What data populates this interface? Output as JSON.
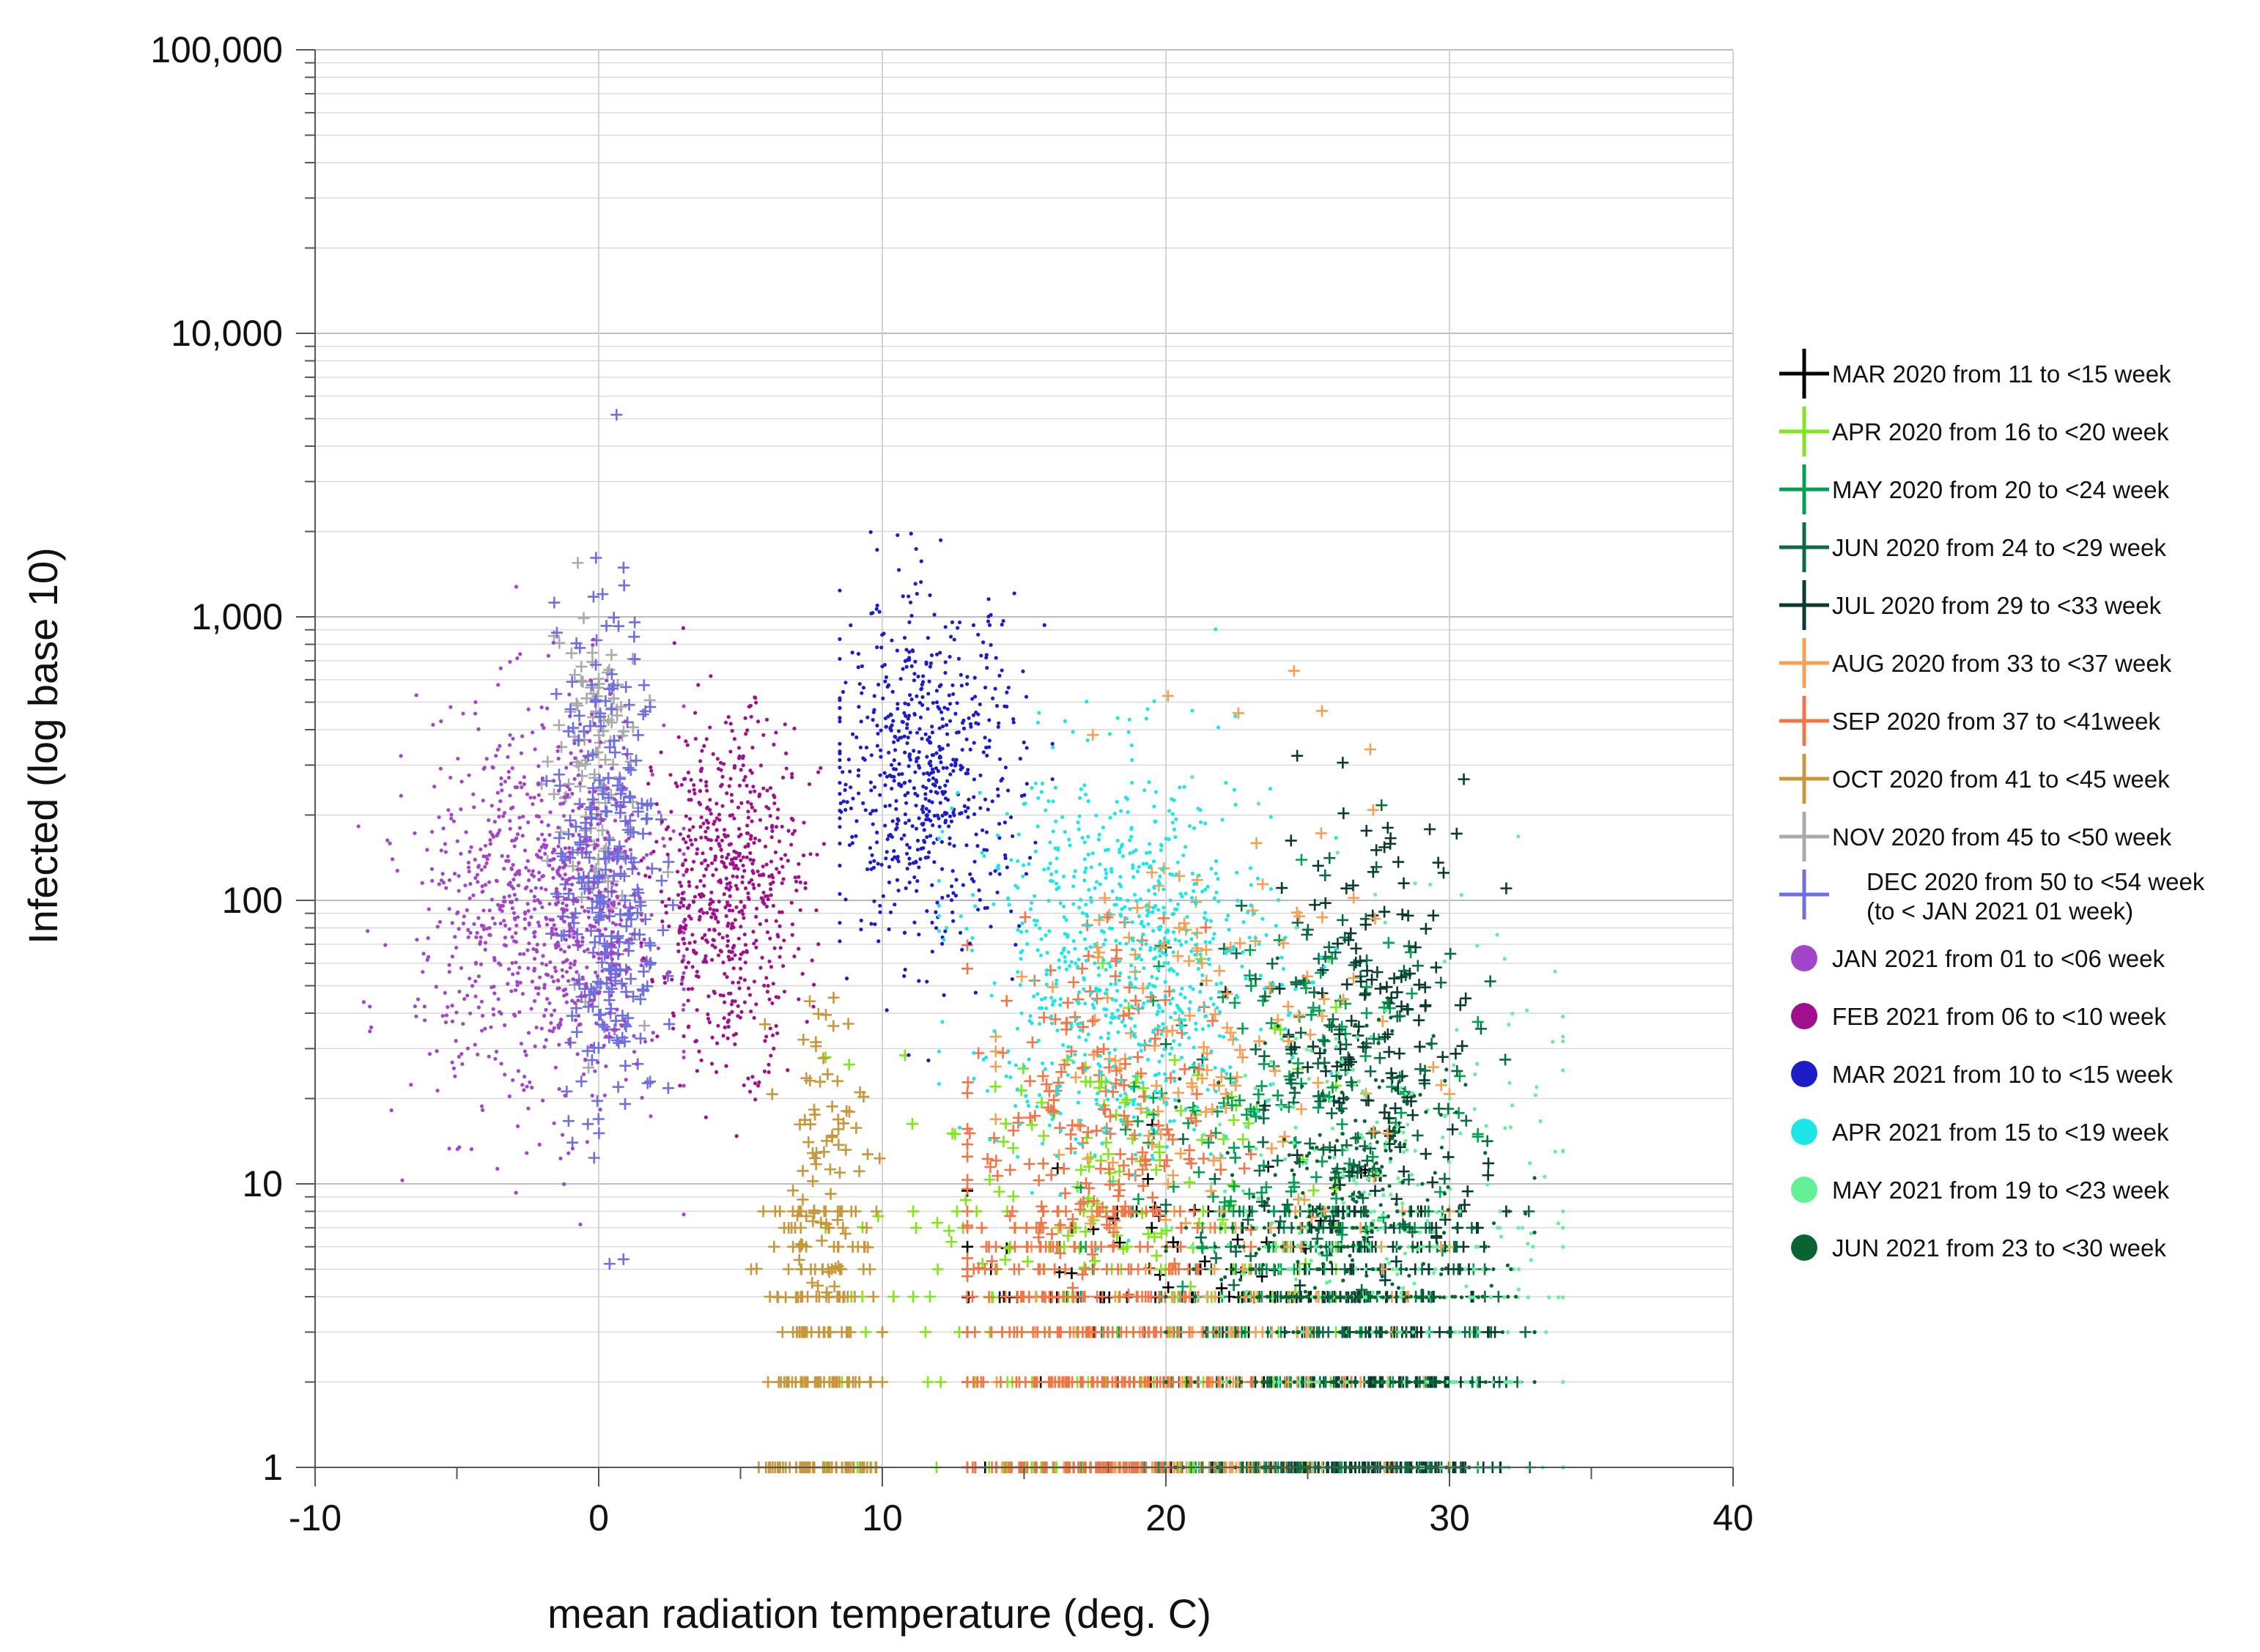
{
  "chart_data": {
    "type": "scatter",
    "title": "",
    "xlabel": "mean radiation temperature (deg. C)",
    "ylabel": "Infected (log base 10)",
    "xlim": [
      -10,
      40
    ],
    "ylim": [
      1,
      100000
    ],
    "yscale": "log",
    "grid": true,
    "legend_position": "right",
    "x_ticks": [
      -10,
      0,
      10,
      20,
      30,
      40
    ],
    "x_tick_labels": [
      "-10",
      "0",
      "10",
      "20",
      "30",
      "40"
    ],
    "y_ticks": [
      1,
      10,
      100,
      1000,
      10000,
      100000
    ],
    "y_tick_labels": [
      "1",
      "10",
      "100",
      "1,000",
      "10,000",
      "100,000"
    ],
    "series": [
      {
        "name": "MAR 2020 from 11 to <15 week",
        "label": [
          "MAR 2020 from 11 to <15 week"
        ],
        "marker": "plus",
        "color": "#000000",
        "x_range": [
          13,
          29
        ],
        "x_center": 21,
        "x_spread": 4,
        "y_log_center": 0.6,
        "y_log_spread": 0.3,
        "n_points": 60,
        "n_int_points": 80
      },
      {
        "name": "APR 2020 from 16 to <20 week",
        "label": [
          "APR 2020 from 16 to <20 week"
        ],
        "marker": "plus",
        "color": "#7fe619",
        "x_range": [
          8,
          26
        ],
        "x_center": 18,
        "x_spread": 4,
        "y_log_center": 1.1,
        "y_log_spread": 0.3,
        "n_points": 120,
        "n_int_points": 150
      },
      {
        "name": "MAY 2020 from 20 to <24 week",
        "label": [
          "MAY 2020 from 20 to <24 week"
        ],
        "marker": "plus",
        "color": "#00a050",
        "x_range": [
          17,
          31
        ],
        "x_center": 24,
        "x_spread": 3,
        "y_log_center": 1.3,
        "y_log_spread": 0.35,
        "n_points": 140,
        "n_int_points": 170
      },
      {
        "name": "JUN 2020 from 24 to <29 week",
        "label": [
          "JUN 2020 from 24 to <29 week"
        ],
        "marker": "plus",
        "color": "#0b6b45",
        "x_range": [
          20,
          33
        ],
        "x_center": 26,
        "x_spread": 2.5,
        "y_log_center": 1.4,
        "y_log_spread": 0.4,
        "n_points": 140,
        "n_int_points": 200
      },
      {
        "name": "JUL 2020 from 29 to <33 week",
        "label": [
          "JUL 2020 from 29 to <33 week"
        ],
        "marker": "plus",
        "color": "#0a3a30",
        "x_range": [
          22,
          32
        ],
        "x_center": 27.5,
        "x_spread": 1.8,
        "y_log_center": 1.5,
        "y_log_spread": 0.45,
        "n_points": 150,
        "n_int_points": 200
      },
      {
        "name": "AUG 2020 from 33 to <37 week",
        "label": [
          "AUG 2020 from 33 to <37 week"
        ],
        "marker": "plus",
        "color": "#f5a054",
        "x_range": [
          14,
          30
        ],
        "x_center": 21.5,
        "x_spread": 3.5,
        "y_log_center": 1.5,
        "y_log_spread": 0.45,
        "n_points": 150,
        "n_int_points": 160
      },
      {
        "name": "SEP 2020 from 37 to <41week",
        "label": [
          "SEP 2020 from 37 to <41week"
        ],
        "marker": "plus",
        "color": "#f0764a",
        "x_range": [
          13,
          23
        ],
        "x_center": 17,
        "x_spread": 2.2,
        "y_log_center": 1.2,
        "y_log_spread": 0.35,
        "n_points": 200,
        "n_int_points": 320
      },
      {
        "name": "OCT 2020 from 41 to <45 week",
        "label": [
          "OCT 2020 from 41 to <45 week"
        ],
        "marker": "plus",
        "color": "#c8963c",
        "x_range": [
          5,
          10
        ],
        "x_center": 7.8,
        "x_spread": 0.8,
        "y_log_center": 1.1,
        "y_log_spread": 0.3,
        "n_points": 80,
        "n_int_points": 200
      },
      {
        "name": "NOV 2020 from 45 to <50 week",
        "label": [
          "NOV 2020 from 45 to <50 week"
        ],
        "marker": "plus",
        "color": "#aaaaaa",
        "x_range": [
          -3,
          3
        ],
        "x_center": -0.2,
        "x_spread": 0.8,
        "y_log_center": 2.45,
        "y_log_spread": 0.35,
        "n_points": 120
      },
      {
        "name": "DEC 2020 from 50 to <54 week (to < JAN 2021 01 week)",
        "label": [
          "DEC 2020 from 50 to <54 week",
          "(to < JAN 2021 01 week)"
        ],
        "marker": "plus",
        "color": "#6f6fe0",
        "x_range": [
          -3,
          3.5
        ],
        "x_center": 0.3,
        "x_spread": 0.9,
        "y_log_center": 2.1,
        "y_log_spread": 0.45,
        "n_points": 300
      },
      {
        "name": "JAN 2021 from 01 to <06 week",
        "label": [
          "JAN 2021 from 01 to <06 week"
        ],
        "marker": "dot",
        "color": "#a245c8",
        "x_range": [
          -8.5,
          3
        ],
        "x_center": -2,
        "x_spread": 2.2,
        "y_log_center": 1.95,
        "y_log_spread": 0.35,
        "n_points": 900
      },
      {
        "name": "FEB 2021 from 06 to <10 week",
        "label": [
          "FEB 2021 from 06 to <10 week"
        ],
        "marker": "dot",
        "color": "#a0108c",
        "x_range": [
          1.5,
          10
        ],
        "x_center": 4.6,
        "x_spread": 1.3,
        "y_log_center": 2.05,
        "y_log_spread": 0.3,
        "n_points": 650
      },
      {
        "name": "MAR 2021 from 10 to <15 week",
        "label": [
          "MAR 2021 from 10 to <15 week"
        ],
        "marker": "dot",
        "color": "#1c1cc8",
        "x_range": [
          8.5,
          16
        ],
        "x_center": 11.5,
        "x_spread": 1.7,
        "y_log_center": 2.45,
        "y_log_spread": 0.3,
        "n_points": 650
      },
      {
        "name": "APR 2021 from 15 to <19 week",
        "label": [
          "APR 2021 from 15 to <19 week"
        ],
        "marker": "dot",
        "color": "#1ee6e6",
        "x_range": [
          12,
          26
        ],
        "x_center": 18.5,
        "x_spread": 2.7,
        "y_log_center": 1.8,
        "y_log_spread": 0.35,
        "n_points": 800
      },
      {
        "name": "MAY 2021 from 19 to <23 week",
        "label": [
          "MAY 2021 from 19 to <23 week"
        ],
        "marker": "dot",
        "color": "#64f096",
        "x_range": [
          20,
          34
        ],
        "x_center": 28,
        "x_spread": 3,
        "y_log_center": 1.0,
        "y_log_spread": 0.45,
        "n_points": 220,
        "n_int_points": 220
      },
      {
        "name": "JUN 2021 from 23 to <30 week",
        "label": [
          "JUN 2021 from 23 to <30 week"
        ],
        "marker": "dot",
        "color": "#0a6432",
        "x_range": [
          20,
          33
        ],
        "x_center": 26.5,
        "x_spread": 2.5,
        "y_log_center": 0.9,
        "y_log_spread": 0.35,
        "n_points": 220,
        "n_int_points": 260
      }
    ]
  }
}
